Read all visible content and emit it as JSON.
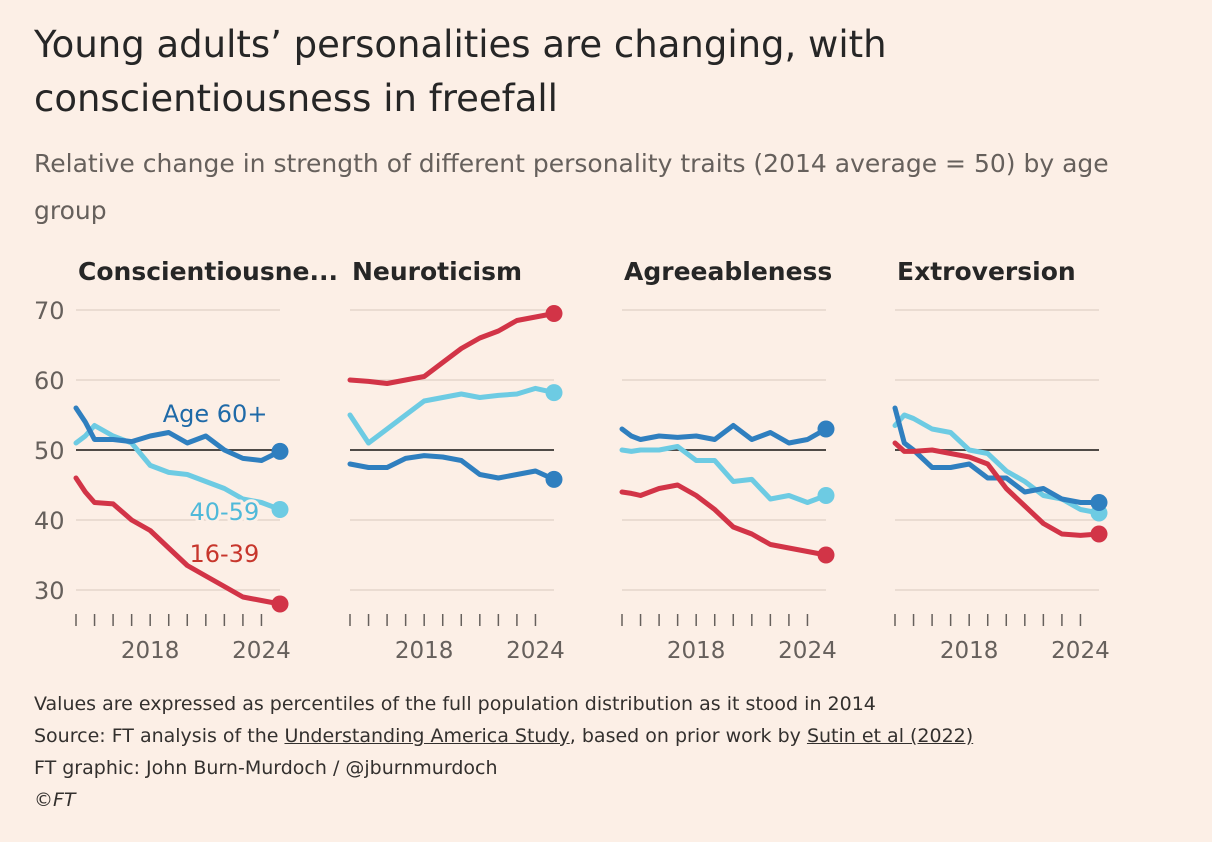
{
  "title": "Young adults’ personalities are changing, with conscientiousness in freefall",
  "subtitle": "Relative change in strength of different personality traits (2014 average = 50) by age group",
  "footer": {
    "note": "Values are expressed as percentiles of the full population distribution as it stood in 2014",
    "source_prefix": "Source: FT analysis of the ",
    "source_link1": "Understanding America Study",
    "source_mid": ", based on prior work by ",
    "source_link2": "Sutin et al (2022)",
    "credit": "FT graphic: John Burn-Murdoch / @jburnmurdoch",
    "copyright_symbol": "©",
    "copyright_text": "FT"
  },
  "colors": {
    "age_60_plus": "#2f7fbf",
    "age_40_59": "#6dcbe3",
    "age_16_39": "#d23447",
    "label_60_plus": "#1f6aa8",
    "label_40_59": "#4fb9d9",
    "label_16_39": "#c7362c",
    "reference_line": "#4f4a46",
    "grid": "#e3d6cc",
    "axis_text": "#66605c",
    "background": "#fcefe6"
  },
  "chart_data": [
    {
      "type": "line",
      "title": "Conscientiousne...",
      "x_ticks": [
        "2018",
        "2024"
      ],
      "y_ticks": [
        30,
        40,
        50,
        60,
        70
      ],
      "ylim": [
        25,
        72
      ],
      "xlim": [
        2014,
        2025
      ],
      "reference_line": 50,
      "x": [
        2014,
        2014.5,
        2015,
        2016,
        2017,
        2018,
        2019,
        2020,
        2021,
        2022,
        2023,
        2024,
        2025
      ],
      "series": [
        {
          "name": "Age 60+",
          "key": "age_60_plus",
          "values": [
            56,
            54,
            51.5,
            51.5,
            51.2,
            52,
            52.5,
            51,
            52,
            50,
            48.8,
            48.5,
            49.8
          ]
        },
        {
          "name": "40-59",
          "key": "age_40_59",
          "values": [
            51,
            52,
            53.5,
            52,
            51,
            47.8,
            46.8,
            46.5,
            45.5,
            44.5,
            43,
            42.5,
            41.5
          ]
        },
        {
          "name": "16-39",
          "key": "age_16_39",
          "values": [
            46,
            44,
            42.5,
            42.3,
            40,
            38.5,
            36,
            33.5,
            32,
            30.5,
            29,
            28.5,
            28
          ]
        }
      ],
      "series_labels": [
        {
          "text": "Age 60+",
          "key": "age_60_plus",
          "x": 2021.5,
          "y": 54
        },
        {
          "text": "40-59",
          "key": "age_40_59",
          "x": 2022,
          "y": 40
        },
        {
          "text": "16-39",
          "key": "age_16_39",
          "x": 2022,
          "y": 34
        }
      ]
    },
    {
      "type": "line",
      "title": "Neuroticism",
      "x_ticks": [
        "2018",
        "2024"
      ],
      "y_ticks": [
        30,
        40,
        50,
        60,
        70
      ],
      "ylim": [
        25,
        72
      ],
      "xlim": [
        2014,
        2025
      ],
      "reference_line": 50,
      "x": [
        2014,
        2015,
        2016,
        2017,
        2018,
        2019,
        2020,
        2021,
        2022,
        2023,
        2024,
        2025
      ],
      "series": [
        {
          "name": "Age 60+",
          "key": "age_60_plus",
          "values": [
            48,
            47.5,
            47.5,
            48.8,
            49.2,
            49,
            48.5,
            46.5,
            46,
            46.5,
            47,
            45.8
          ]
        },
        {
          "name": "40-59",
          "key": "age_40_59",
          "values": [
            55,
            51,
            53,
            55,
            57,
            57.5,
            58,
            57.5,
            57.8,
            58,
            58.8,
            58.2
          ]
        },
        {
          "name": "16-39",
          "key": "age_16_39",
          "values": [
            60,
            59.8,
            59.5,
            60,
            60.5,
            62.5,
            64.5,
            66,
            67,
            68.5,
            69,
            69.5
          ]
        }
      ]
    },
    {
      "type": "line",
      "title": "Agreeableness",
      "x_ticks": [
        "2018",
        "2024"
      ],
      "y_ticks": [
        30,
        40,
        50,
        60,
        70
      ],
      "ylim": [
        25,
        72
      ],
      "xlim": [
        2014,
        2025
      ],
      "reference_line": 50,
      "x": [
        2014,
        2014.5,
        2015,
        2016,
        2017,
        2018,
        2019,
        2020,
        2021,
        2022,
        2023,
        2024,
        2025
      ],
      "series": [
        {
          "name": "Age 60+",
          "key": "age_60_plus",
          "values": [
            53,
            52,
            51.5,
            52,
            51.8,
            52,
            51.5,
            53.5,
            51.5,
            52.5,
            51,
            51.5,
            53
          ]
        },
        {
          "name": "40-59",
          "key": "age_40_59",
          "values": [
            50,
            49.8,
            50,
            50,
            50.5,
            48.5,
            48.5,
            45.5,
            45.8,
            43,
            43.5,
            42.5,
            43.5
          ]
        },
        {
          "name": "16-39",
          "key": "age_16_39",
          "values": [
            44,
            43.8,
            43.5,
            44.5,
            45,
            43.5,
            41.5,
            39,
            38,
            36.5,
            36,
            35.5,
            35
          ]
        }
      ]
    },
    {
      "type": "line",
      "title": "Extroversion",
      "x_ticks": [
        "2018",
        "2024"
      ],
      "y_ticks": [
        30,
        40,
        50,
        60,
        70
      ],
      "ylim": [
        25,
        72
      ],
      "xlim": [
        2014,
        2025
      ],
      "reference_line": 50,
      "x": [
        2014,
        2014.5,
        2015,
        2016,
        2017,
        2018,
        2019,
        2020,
        2021,
        2022,
        2023,
        2024,
        2025
      ],
      "series": [
        {
          "name": "Age 60+",
          "key": "age_60_plus",
          "values": [
            56,
            51,
            50,
            47.5,
            47.5,
            48,
            46,
            46,
            44,
            44.5,
            43,
            42.5,
            42.5
          ]
        },
        {
          "name": "40-59",
          "key": "age_40_59",
          "values": [
            53.5,
            55,
            54.5,
            53,
            52.5,
            50,
            49.5,
            47,
            45.5,
            43.5,
            43,
            41.5,
            41
          ]
        },
        {
          "name": "16-39",
          "key": "age_16_39",
          "values": [
            51,
            49.8,
            49.8,
            50,
            49.5,
            49,
            48,
            44.5,
            42,
            39.5,
            38,
            37.8,
            38
          ]
        }
      ]
    }
  ]
}
